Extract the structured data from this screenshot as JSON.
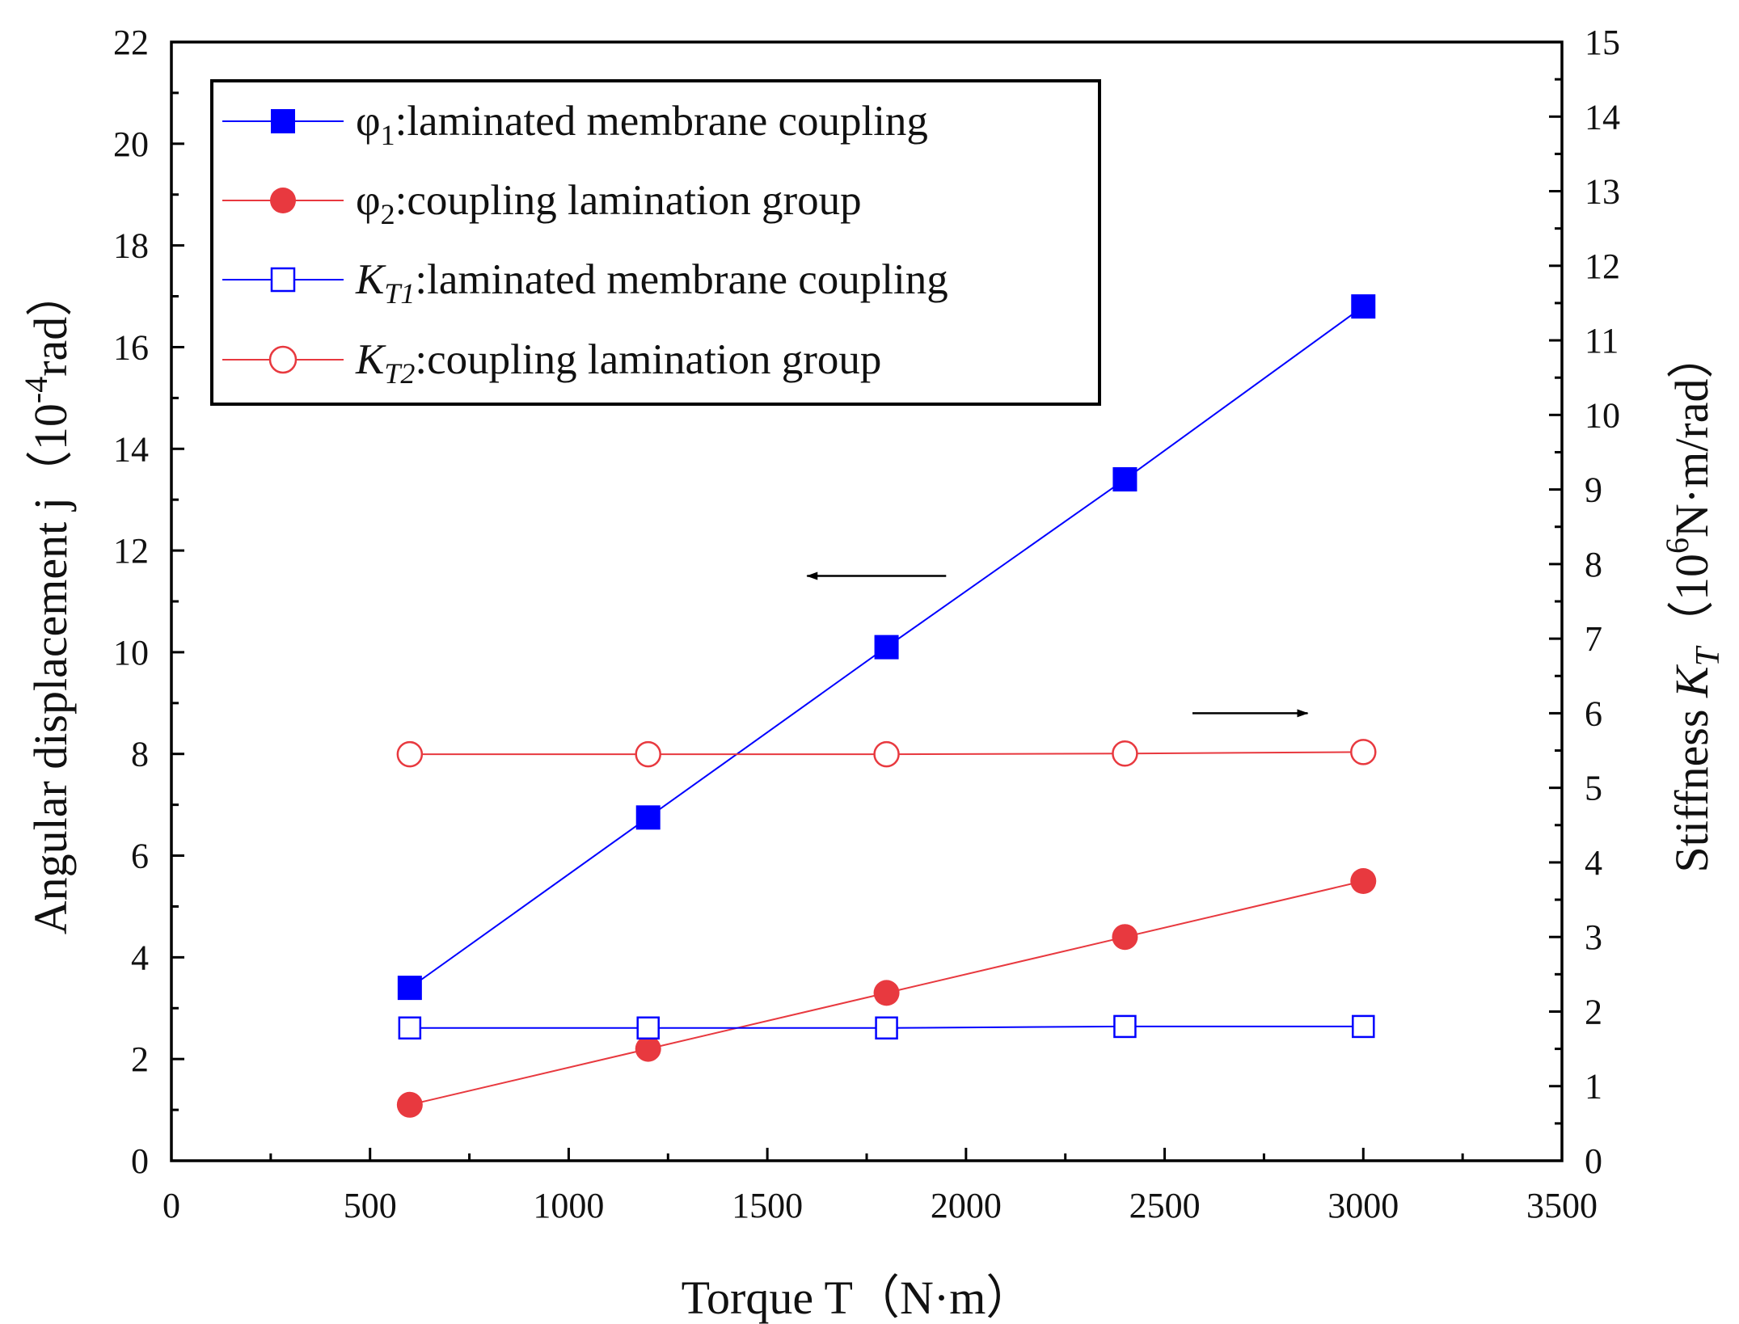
{
  "chart_data": {
    "type": "line",
    "x_axis": {
      "label": "Torque T（N·m）",
      "range": [
        0,
        3500
      ],
      "ticks": [
        "0",
        "500",
        "1000",
        "1500",
        "2000",
        "2500",
        "3000",
        "3500"
      ]
    },
    "y_left": {
      "label_main": "Angular displacement j（10",
      "label_sup": "-4",
      "label_tail": "rad）",
      "range": [
        0,
        22
      ],
      "ticks": [
        "0",
        "2",
        "4",
        "6",
        "8",
        "10",
        "12",
        "14",
        "16",
        "18",
        "20",
        "22"
      ]
    },
    "y_right": {
      "label_main": "Stiffness ",
      "label_italic": "K",
      "label_sub": "T",
      "label_mid": "（10",
      "label_sup": "6",
      "label_tail": "N·m/rad）",
      "range": [
        0,
        15
      ],
      "ticks": [
        "0",
        "1",
        "2",
        "3",
        "4",
        "5",
        "6",
        "7",
        "8",
        "9",
        "10",
        "11",
        "12",
        "13",
        "14",
        "15"
      ]
    },
    "series": [
      {
        "id": "phi1",
        "legend_prefix": "φ",
        "legend_sub": "1",
        "legend_text": ":laminated membrane coupling",
        "axis": "left",
        "color": "#0000ff",
        "marker": "square-filled",
        "x": [
          600,
          1200,
          1800,
          2400,
          3000
        ],
        "y": [
          3.4,
          6.75,
          10.1,
          13.4,
          16.8
        ]
      },
      {
        "id": "phi2",
        "legend_prefix": "φ",
        "legend_sub": "2",
        "legend_text": ":coupling lamination group",
        "axis": "left",
        "color": "#e8393f",
        "marker": "circle-filled",
        "x": [
          600,
          1200,
          1800,
          2400,
          3000
        ],
        "y": [
          1.1,
          2.2,
          3.3,
          4.4,
          5.5
        ]
      },
      {
        "id": "kt1",
        "legend_prefix": "K",
        "legend_sub": "T1",
        "legend_text": ":laminated membrane coupling",
        "axis": "right",
        "color": "#0000ff",
        "marker": "square-open",
        "x": [
          600,
          1200,
          1800,
          2400,
          3000
        ],
        "y": [
          1.78,
          1.78,
          1.78,
          1.8,
          1.8
        ]
      },
      {
        "id": "kt2",
        "legend_prefix": "K",
        "legend_sub": "T2",
        "legend_text": ":coupling lamination group",
        "axis": "right",
        "color": "#e8393f",
        "marker": "circle-open",
        "x": [
          600,
          1200,
          1800,
          2400,
          3000
        ],
        "y": [
          5.45,
          5.45,
          5.45,
          5.46,
          5.48
        ]
      }
    ],
    "annotations": [
      {
        "type": "arrow",
        "direction": "left",
        "meaning": "phi curves read left axis",
        "x_data": [
          1950,
          1600
        ],
        "y_left": 11.5
      },
      {
        "type": "arrow",
        "direction": "right",
        "meaning": "stiffness curves read right axis",
        "x_data": [
          2570,
          2860
        ],
        "y_left": 8.8
      }
    ],
    "legend_position": "top-left"
  }
}
